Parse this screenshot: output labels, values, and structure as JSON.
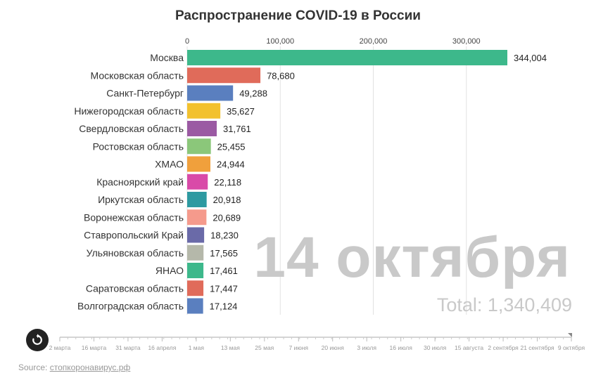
{
  "chart_data": {
    "type": "bar",
    "title": "Распространение COVID-19 в России",
    "categories": [
      "Москва",
      "Московская область",
      "Санкт-Петербург",
      "Нижегородская область",
      "Свердловская область",
      "Ростовская область",
      "ХМАО",
      "Красноярский край",
      "Иркутская область",
      "Воронежская область",
      "Ставропольский Край",
      "Ульяновская область",
      "ЯНАО",
      "Саратовская область",
      "Волгоградская область"
    ],
    "values": [
      344004,
      78680,
      49288,
      35627,
      31761,
      25455,
      24944,
      22118,
      20918,
      20689,
      18230,
      17565,
      17461,
      17447,
      17124
    ],
    "value_labels": [
      "344,004",
      "78,680",
      "49,288",
      "35,627",
      "31,761",
      "25,455",
      "24,944",
      "22,118",
      "20,918",
      "20,689",
      "18,230",
      "17,565",
      "17,461",
      "17,447",
      "17,124"
    ],
    "colors": [
      "#3db88b",
      "#e06b5a",
      "#5a7fbf",
      "#f2c12e",
      "#9b5aa3",
      "#8bc77a",
      "#f0a03c",
      "#d94aa8",
      "#2e9aa1",
      "#f59a8c",
      "#6a6aa8",
      "#b5b8aa",
      "#3db88b",
      "#e06b5a",
      "#5a7fbf"
    ],
    "xticks": [
      0,
      100000,
      200000,
      300000
    ],
    "xtick_labels": [
      "0",
      "100,000",
      "200,000",
      "300,000"
    ],
    "xlim": [
      0,
      344004
    ],
    "grid": true,
    "date": "14 октября",
    "total": "Total: 1,340,409"
  },
  "timeline": {
    "labels": [
      "2 марта",
      "16 марта",
      "31 марта",
      "16 апреля",
      "1 мая",
      "13 мая",
      "25 мая",
      "7 июня",
      "20 июня",
      "3 июля",
      "16 июля",
      "30 июля",
      "15 августа",
      "2 сентября",
      "21 сентября",
      "9 октября"
    ],
    "progress": 1.0
  },
  "controls": {
    "replay_icon": "replay-icon"
  },
  "source": {
    "prefix": "Source: ",
    "link_text": "стопкоронавирус.рф"
  }
}
